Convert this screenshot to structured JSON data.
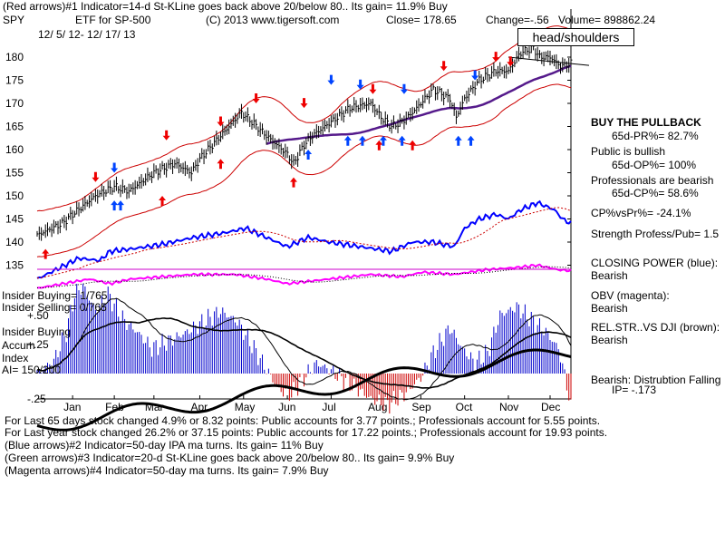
{
  "header": {
    "line1": "(Red arrows)#1 Indicator=14-d St-KLine goes back above 20/below 80..  Its gain= 11.9% Buy",
    "symbol": "SPY",
    "description": "ETF for SP-500",
    "copyright": "(C) 2013 www.tigersoft.com",
    "close": "Close=  178.65",
    "change": "Change=-.56",
    "volume": "Volume= 898862.24",
    "date_range": "12/ 5/ 12-  12/ 17/ 13",
    "annotation": "head/shoulders"
  },
  "right_panel": {
    "buy_pullback": "BUY THE PULLBACK",
    "pr_pct": "65d-PR%= 82.7%",
    "public_bullish": "Public is bullish",
    "op_pct": "65d-OP%= 100%",
    "pros_bearish": "Professionals are bearish",
    "cp_pct": "65d-CP%= 58.6%",
    "cp_vs_pr": "CP%vsPr%= -24.1%",
    "strength": "Strength Profess/Pub= 1.5",
    "closing_power_label": "CLOSING POWER (blue):",
    "closing_power_value": "Bearish",
    "obv_label": "OBV (magenta):",
    "obv_value": "Bearish",
    "relstr_label": "REL.STR..VS DJI (brown):",
    "relstr_value": "Bearish",
    "bearish_dist": "Bearish: Distrubtion Falling",
    "ip_value": "IP= -.173"
  },
  "left_panel": {
    "insider_buying": "Insider Buying= 1/765",
    "insider_selling": "Insider Selling= 0/765",
    "plus50": "+.50",
    "insider_buying2": "Insider Buying",
    "accum": "Accum",
    "plus25": "+.25",
    "index": "Index",
    "ai": "AI= 150/200",
    "minus25": "-.25"
  },
  "footer": {
    "line1": "For Last 65 days stock changed  4.9% or 8.32 points:  Public accounts for  3.77 points.;  Professionals account for  5.55 points.",
    "line2": "For Last year stock changed  26.2% or  37.15 points:  Public accounts for  17.22 points.;  Professionals account for  19.93 points.",
    "line3": "(Blue arrows)#2 Indicator=50-day IPA ma turns.  Its gain= 11% Buy",
    "line4": "(Green arrows)#3 Indicator=20-d St-KLine goes back above 20/below 80..  Its gain= 9.9% Buy",
    "line5": "(Magenta arrows)#4 Indicator=50-day ma turns.  Its gain= 7.9% Buy"
  },
  "chart_data": {
    "type": "line",
    "title": "SPY ETF for SP-500",
    "ylim": [
      130,
      185
    ],
    "yticks": [
      "180",
      "175",
      "170",
      "165",
      "160",
      "155",
      "150",
      "145",
      "140",
      "135"
    ],
    "ytick_values": [
      180,
      175,
      170,
      165,
      160,
      155,
      150,
      145,
      140,
      135
    ],
    "months": [
      "Jan",
      "Feb",
      "Mar",
      "Apr",
      "May",
      "Jun",
      "Jul",
      "Aug",
      "Sep",
      "Oct",
      "Nov",
      "Dec"
    ],
    "month_index": [
      17,
      37,
      56,
      78,
      99,
      120,
      141,
      163,
      184,
      205,
      226,
      246
    ],
    "n": 257,
    "price_anchors": [
      [
        0,
        141.5
      ],
      [
        12,
        144
      ],
      [
        17,
        146
      ],
      [
        28,
        150
      ],
      [
        37,
        152
      ],
      [
        44,
        151
      ],
      [
        56,
        155
      ],
      [
        66,
        157
      ],
      [
        74,
        155
      ],
      [
        78,
        158
      ],
      [
        88,
        163
      ],
      [
        98,
        168
      ],
      [
        103,
        166
      ],
      [
        110,
        163
      ],
      [
        115,
        161
      ],
      [
        120,
        159
      ],
      [
        123,
        157
      ],
      [
        128,
        161
      ],
      [
        132,
        163
      ],
      [
        141,
        166
      ],
      [
        150,
        169
      ],
      [
        160,
        170
      ],
      [
        165,
        167
      ],
      [
        170,
        165
      ],
      [
        175,
        166
      ],
      [
        180,
        168
      ],
      [
        184,
        170
      ],
      [
        190,
        173
      ],
      [
        198,
        171
      ],
      [
        201,
        167
      ],
      [
        205,
        171
      ],
      [
        212,
        175
      ],
      [
        220,
        177
      ],
      [
        226,
        177
      ],
      [
        232,
        181
      ],
      [
        238,
        182
      ],
      [
        241,
        180
      ],
      [
        246,
        180
      ],
      [
        251,
        178
      ],
      [
        256,
        178.65
      ]
    ],
    "cp_anchors": [
      [
        0,
        132
      ],
      [
        20,
        136.5
      ],
      [
        30,
        136
      ],
      [
        35,
        138
      ],
      [
        45,
        138.5
      ],
      [
        60,
        139.5
      ],
      [
        75,
        141
      ],
      [
        90,
        142
      ],
      [
        100,
        143
      ],
      [
        110,
        141
      ],
      [
        120,
        139
      ],
      [
        130,
        141
      ],
      [
        140,
        140
      ],
      [
        155,
        139
      ],
      [
        170,
        138
      ],
      [
        180,
        140
      ],
      [
        190,
        140
      ],
      [
        200,
        139
      ],
      [
        205,
        143
      ],
      [
        212,
        145
      ],
      [
        220,
        146
      ],
      [
        226,
        145
      ],
      [
        232,
        147
      ],
      [
        240,
        148.5
      ],
      [
        248,
        147
      ],
      [
        252,
        145
      ],
      [
        256,
        144
      ]
    ],
    "obv_anchors": [
      [
        0,
        130
      ],
      [
        25,
        132
      ],
      [
        35,
        131
      ],
      [
        45,
        132
      ],
      [
        60,
        132.5
      ],
      [
        75,
        133
      ],
      [
        95,
        133
      ],
      [
        110,
        132
      ],
      [
        120,
        131
      ],
      [
        140,
        132
      ],
      [
        160,
        133
      ],
      [
        175,
        132.5
      ],
      [
        185,
        133.5
      ],
      [
        200,
        133
      ],
      [
        215,
        134
      ],
      [
        230,
        134.5
      ],
      [
        240,
        135
      ],
      [
        250,
        134
      ],
      [
        256,
        133.8
      ]
    ],
    "accum_anchors": [
      [
        0,
        0
      ],
      [
        8,
        0.06
      ],
      [
        14,
        0.2
      ],
      [
        18,
        0.38
      ],
      [
        22,
        0.42
      ],
      [
        28,
        0.3
      ],
      [
        34,
        0.38
      ],
      [
        42,
        0.25
      ],
      [
        48,
        0.2
      ],
      [
        55,
        0.12
      ],
      [
        62,
        0.15
      ],
      [
        72,
        0.2
      ],
      [
        80,
        0.25
      ],
      [
        88,
        0.3
      ],
      [
        96,
        0.25
      ],
      [
        104,
        0.12
      ],
      [
        110,
        0.02
      ],
      [
        116,
        -0.08
      ],
      [
        122,
        -0.1
      ],
      [
        128,
        -0.02
      ],
      [
        134,
        0.05
      ],
      [
        140,
        0.02
      ],
      [
        150,
        -0.05
      ],
      [
        160,
        -0.12
      ],
      [
        168,
        -0.15
      ],
      [
        176,
        -0.1
      ],
      [
        184,
        -0.02
      ],
      [
        190,
        0.1
      ],
      [
        198,
        0.22
      ],
      [
        204,
        0.12
      ],
      [
        210,
        0.05
      ],
      [
        216,
        0.1
      ],
      [
        222,
        0.28
      ],
      [
        230,
        0.32
      ],
      [
        238,
        0.25
      ],
      [
        244,
        0.2
      ],
      [
        250,
        0.12
      ],
      [
        254,
        -0.05
      ],
      [
        256,
        -0.17
      ]
    ],
    "series": [
      {
        "name": "SPY price",
        "role": "price"
      },
      {
        "name": "Closing Power",
        "role": "cp"
      },
      {
        "name": "OBV",
        "role": "obv"
      },
      {
        "name": "Accumulation Index",
        "role": "accum"
      }
    ],
    "red_arrows_up": [
      [
        4,
        138.5
      ],
      [
        60,
        150
      ],
      [
        88,
        158
      ],
      [
        123,
        154
      ],
      [
        164,
        162
      ],
      [
        180,
        162
      ]
    ],
    "red_arrows_down": [
      [
        28,
        153
      ],
      [
        62,
        162
      ],
      [
        88,
        165
      ],
      [
        105,
        170
      ],
      [
        128,
        169
      ],
      [
        161,
        172
      ],
      [
        195,
        177
      ],
      [
        220,
        179
      ],
      [
        227,
        178
      ]
    ],
    "blue_arrows_up": [
      [
        37,
        149
      ],
      [
        40,
        149
      ],
      [
        130,
        160
      ],
      [
        149,
        163
      ],
      [
        156,
        163
      ],
      [
        166,
        163
      ],
      [
        175,
        163
      ],
      [
        202,
        163
      ],
      [
        208,
        163
      ]
    ],
    "blue_arrows_down": [
      [
        37,
        155
      ],
      [
        141,
        174
      ],
      [
        155,
        173
      ],
      [
        176,
        172
      ],
      [
        210,
        175
      ]
    ]
  },
  "colors": {
    "price": "#000000",
    "band": "#cc0000",
    "ma": "#551a8b",
    "cp": "#0000ff",
    "obv": "#ff00ff",
    "accum_pos": "#0000cc",
    "accum_neg": "#cc0000"
  }
}
